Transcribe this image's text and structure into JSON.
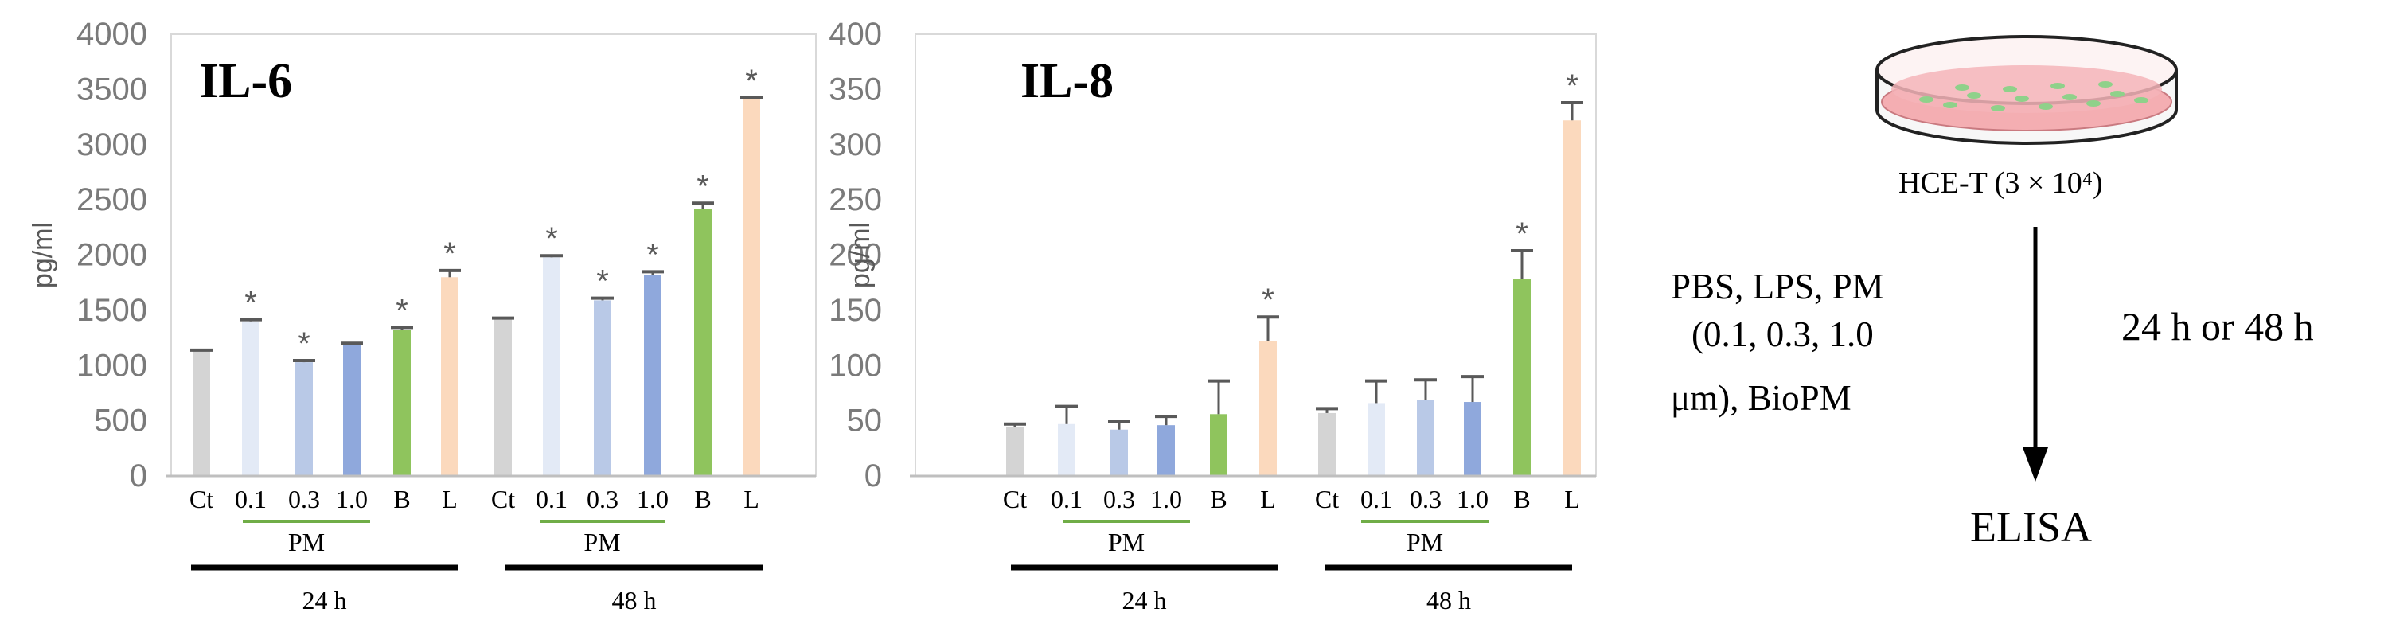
{
  "chart_data": [
    {
      "type": "bar",
      "title": "IL-6",
      "ylabel": "pg/ml",
      "ylim": [
        0,
        4000
      ],
      "yticks": [
        0,
        500,
        1000,
        1500,
        2000,
        2500,
        3000,
        3500,
        4000
      ],
      "grid": false,
      "categories": [
        "Ct",
        "0.1",
        "0.3",
        "1.0",
        "B",
        "L",
        "Ct",
        "0.1",
        "0.3",
        "1.0",
        "B",
        "L"
      ],
      "values": [
        1130,
        1400,
        1030,
        1190,
        1320,
        1800,
        1420,
        1980,
        1590,
        1820,
        2420,
        3410
      ],
      "errors": [
        10,
        15,
        15,
        12,
        25,
        60,
        10,
        15,
        20,
        30,
        50,
        15
      ],
      "significant": [
        false,
        true,
        true,
        false,
        true,
        true,
        false,
        true,
        true,
        true,
        true,
        true
      ],
      "group_labels": [
        "PM",
        "PM"
      ],
      "time_labels": [
        "24 h",
        "48 h"
      ]
    },
    {
      "type": "bar",
      "title": "IL-8",
      "ylabel": "pg/ml",
      "ylim": [
        0,
        400
      ],
      "yticks": [
        0,
        50,
        100,
        150,
        200,
        250,
        300,
        350,
        400
      ],
      "grid": false,
      "categories": [
        "Ct",
        "0.1",
        "0.3",
        "1.0",
        "B",
        "L",
        "Ct",
        "0.1",
        "0.3",
        "1.0",
        "B",
        "L"
      ],
      "values": [
        44,
        47,
        42,
        46,
        56,
        122,
        57,
        66,
        69,
        67,
        178,
        322
      ],
      "errors": [
        3,
        16,
        7,
        8,
        30,
        22,
        4,
        20,
        18,
        23,
        26,
        16
      ],
      "significant": [
        false,
        false,
        false,
        false,
        false,
        true,
        false,
        false,
        false,
        false,
        true,
        true
      ],
      "group_labels": [
        "PM",
        "PM"
      ],
      "time_labels": [
        "24 h",
        "48 h"
      ]
    }
  ],
  "colors": {
    "Ct": "#d4d4d4",
    "0.1": "#e3eaf6",
    "0.3": "#b9c9e7",
    "1.0": "#8fa8dc",
    "B": "#8fc45d",
    "L": "#fbd9bd",
    "pm_line": "#70ad47",
    "time_line": "#000000",
    "error_bar": "#595959"
  },
  "significance_mark": "*",
  "schematic": {
    "cells_label": "HCE-T (3 × 10⁴)",
    "treatment_lines": [
      "PBS, LPS, PM",
      "(0.1, 0.3, 1.0",
      "μm), BioPM"
    ],
    "duration": "24 h or 48 h",
    "assay": "ELISA"
  }
}
